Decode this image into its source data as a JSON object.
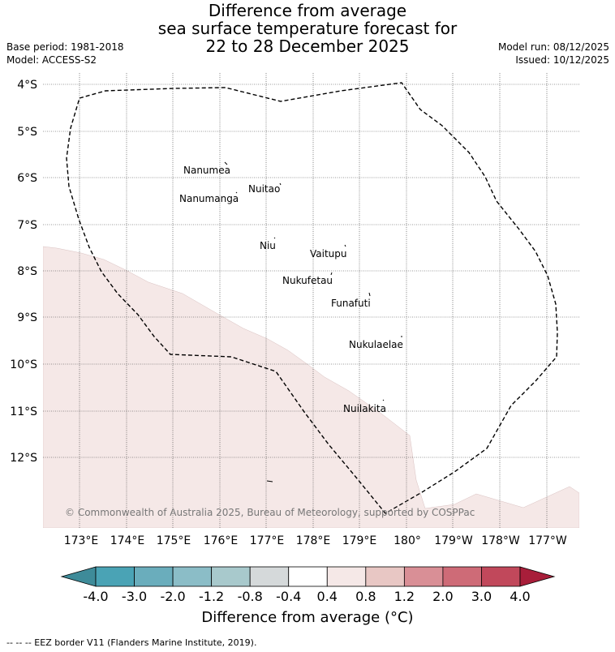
{
  "title": {
    "line1": "Difference from average",
    "line2": "sea surface temperature forecast for",
    "line3": "22 to 28 December 2025"
  },
  "meta": {
    "base_period": "Base period: 1981-2018",
    "model": "Model: ACCESS-S2",
    "model_run": "Model run: 08/12/2025",
    "issued": "Issued: 10/12/2025"
  },
  "map": {
    "lat_labels": [
      "4°S",
      "5°S",
      "6°S",
      "7°S",
      "8°S",
      "9°S",
      "10°S",
      "11°S",
      "12°S"
    ],
    "lon_labels": [
      "173°E",
      "174°E",
      "175°E",
      "176°E",
      "177°E",
      "178°E",
      "179°E",
      "180°",
      "179°W",
      "178°W",
      "177°W"
    ],
    "islands": [
      "Nanumea",
      "Nuitao",
      "Nanumanga",
      "Niu",
      "Vaitupu",
      "Nukufetau",
      "Funafuti",
      "Nukulaelae",
      "Nuilakita"
    ],
    "copyright": "© Commonwealth of Australia 2025, Bureau of Meteorology, supported by COSPPac",
    "anomaly_fill_color": "#f5e8e7",
    "eez_line_color": "#000000"
  },
  "colorbar": {
    "ticks": [
      "-4.0",
      "-3.0",
      "-2.0",
      "-1.2",
      "-0.8",
      "-0.4",
      "0.4",
      "0.8",
      "1.2",
      "2.0",
      "3.0",
      "4.0"
    ],
    "colors": [
      "#4aa3b5",
      "#6aadbc",
      "#8bbdc7",
      "#a8c9cc",
      "#d5d9da",
      "#ffffff",
      "#f5e8e7",
      "#e8c7c4",
      "#d98f96",
      "#ce6b77",
      "#c1485b"
    ],
    "under_color": "#3e8b99",
    "over_color": "#a81e3a",
    "label": "Difference from average (°C)"
  },
  "footer": "--  --  -- EEZ border V11 (Flanders Marine Institute, 2019)."
}
